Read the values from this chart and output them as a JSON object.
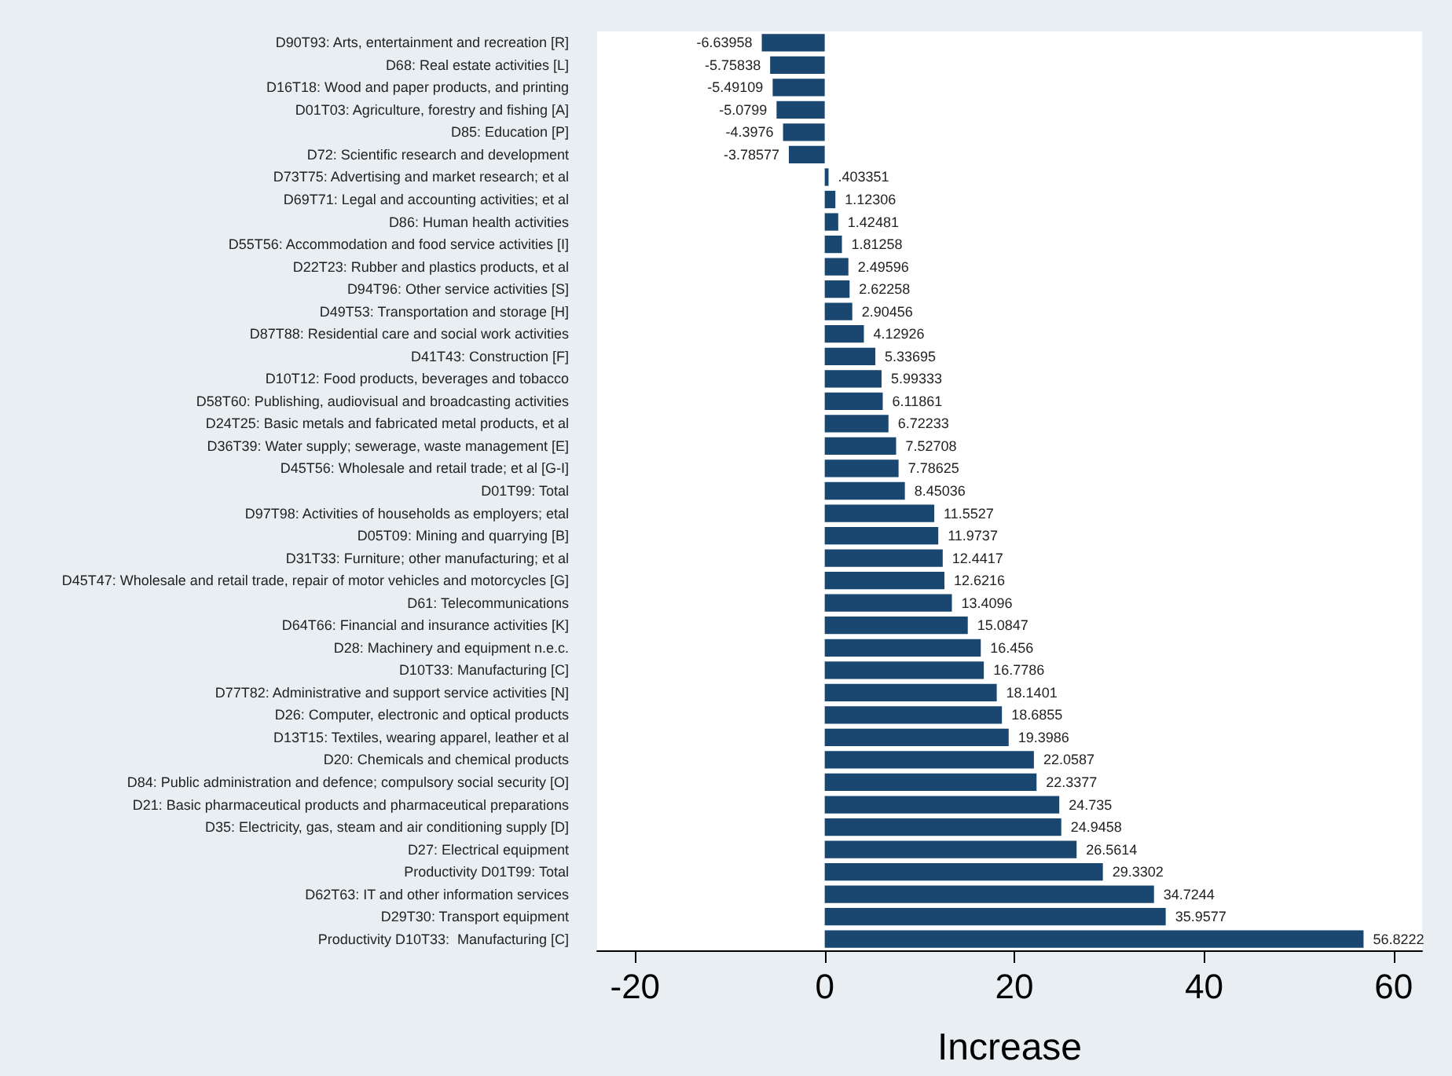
{
  "chart_data": {
    "type": "bar",
    "orientation": "horizontal",
    "xlabel": "Increase",
    "categories": [
      "D90T93: Arts, entertainment and recreation [R]",
      "D68: Real estate activities [L]",
      "D16T18: Wood and paper products, and printing",
      "D01T03: Agriculture, forestry and fishing [A]",
      "D85: Education [P]",
      "D72: Scientific research and development",
      "D73T75: Advertising and market research; et al",
      "D69T71: Legal and accounting activities; et al",
      "D86: Human health activities",
      "D55T56: Accommodation and food service activities [I]",
      "D22T23: Rubber and plastics products, et al",
      "D94T96: Other service activities [S]",
      "D49T53: Transportation and storage [H]",
      "D87T88: Residential care and social work activities",
      "D41T43: Construction [F]",
      "D10T12: Food products, beverages and tobacco",
      "D58T60: Publishing, audiovisual and broadcasting activities",
      "D24T25: Basic metals and fabricated metal products, et al",
      "D36T39: Water supply; sewerage, waste management [E]",
      "D45T56: Wholesale and retail trade; et al [G-I]",
      "D01T99: Total",
      "D97T98: Activities of households as employers; etal",
      "D05T09: Mining and quarrying [B]",
      "D31T33: Furniture; other manufacturing; et al",
      "D45T47: Wholesale and retail trade, repair of motor vehicles and motorcycles [G]",
      "D61: Telecommunications",
      "D64T66: Financial and insurance activities [K]",
      "D28: Machinery and equipment n.e.c.",
      "D10T33: Manufacturing [C]",
      "D77T82: Administrative and support service activities [N]",
      "D26: Computer, electronic and optical products",
      "D13T15: Textiles, wearing apparel, leather et al",
      "D20: Chemicals and chemical products",
      "D84: Public administration and defence; compulsory social security [O]",
      "D21: Basic pharmaceutical products and pharmaceutical preparations",
      "D35: Electricity, gas, steam and air conditioning supply [D]",
      "D27: Electrical equipment",
      "Productivity D01T99: Total",
      "D62T63: IT and other information services",
      "D29T30: Transport equipment",
      "Productivity D10T33:  Manufacturing [C]"
    ],
    "values": [
      -6.63958,
      -5.75838,
      -5.49109,
      -5.0799,
      -4.3976,
      -3.78577,
      0.403351,
      1.12306,
      1.42481,
      1.81258,
      2.49596,
      2.62258,
      2.90456,
      4.12926,
      5.33695,
      5.99333,
      6.11861,
      6.72233,
      7.52708,
      7.78625,
      8.45036,
      11.5527,
      11.9737,
      12.4417,
      12.6216,
      13.4096,
      15.0847,
      16.456,
      16.7786,
      18.1401,
      18.6855,
      19.3986,
      22.0587,
      22.3377,
      24.735,
      24.9458,
      26.5614,
      29.3302,
      34.7244,
      35.9577,
      56.8222
    ],
    "value_labels": [
      "-6.63958",
      "-5.75838",
      "-5.49109",
      "-5.0799",
      "-4.3976",
      "-3.78577",
      ".403351",
      "1.12306",
      "1.42481",
      "1.81258",
      "2.49596",
      "2.62258",
      "2.90456",
      "4.12926",
      "5.33695",
      "5.99333",
      "6.11861",
      "6.72233",
      "7.52708",
      "7.78625",
      "8.45036",
      "11.5527",
      "11.9737",
      "12.4417",
      "12.6216",
      "13.4096",
      "15.0847",
      "16.456",
      "16.7786",
      "18.1401",
      "18.6855",
      "19.3986",
      "22.0587",
      "22.3377",
      "24.735",
      "24.9458",
      "26.5614",
      "29.3302",
      "34.7244",
      "35.9577",
      "56.8222"
    ],
    "color": "#1a476f",
    "xlim": [
      -24,
      63
    ],
    "xticks": [
      -20,
      0,
      20,
      40,
      60
    ],
    "grid": false
  }
}
